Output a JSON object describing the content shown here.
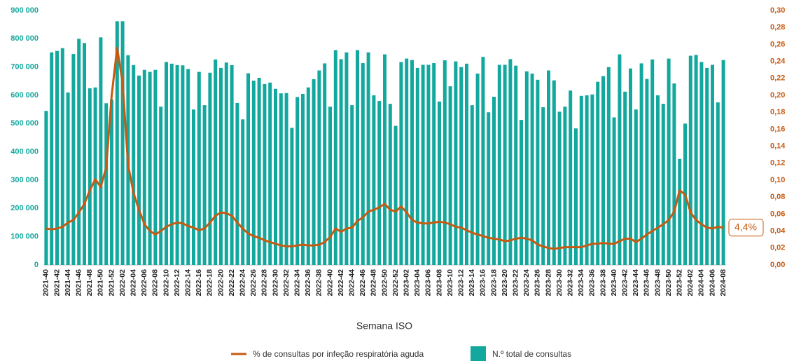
{
  "chart_data": {
    "type": "bar",
    "x_label": "Semana ISO",
    "annotation": "4,4%",
    "categories": [
      "2021-40",
      null,
      "2021-42",
      null,
      "2021-44",
      null,
      "2021-46",
      null,
      "2021-48",
      null,
      "2021-50",
      null,
      "2021-52",
      null,
      "2022-02",
      null,
      "2022-04",
      null,
      "2022-06",
      null,
      "2022-08",
      null,
      "2022-10",
      null,
      "2022-12",
      null,
      "2022-14",
      null,
      "2022-16",
      null,
      "2022-18",
      null,
      "2022-20",
      null,
      "2022-22",
      null,
      "2022-24",
      null,
      "2022-26",
      null,
      "2022-28",
      null,
      "2022-30",
      null,
      "2022-32",
      null,
      "2022-34",
      null,
      "2022-36",
      null,
      "2022-38",
      null,
      "2022-40",
      null,
      "2022-42",
      null,
      "2022-44",
      null,
      "2022-46",
      null,
      "2022-48",
      null,
      "2022-50",
      null,
      "2022-52",
      null,
      "2023-02",
      null,
      "2023-04",
      null,
      "2023-06",
      null,
      "2023-08",
      null,
      "2023-10",
      null,
      "2023-12",
      null,
      "2023-14",
      null,
      "2023-16",
      null,
      "2023-18",
      null,
      "2023-20",
      null,
      "2023-22",
      null,
      "2023-24",
      null,
      "2023-26",
      null,
      "2023-28",
      null,
      "2023-30",
      null,
      "2023-32",
      null,
      "2023-34",
      null,
      "2023-36",
      null,
      "2023-38",
      null,
      "2023-40",
      null,
      "2023-42",
      null,
      "2023-44",
      null,
      "2023-46",
      null,
      "2023-48",
      null,
      "2023-50",
      null,
      "2023-52",
      null,
      "2024-02",
      null,
      "2024-04",
      null,
      "2024-06",
      null,
      "2024-08"
    ],
    "series": [
      {
        "name": "% de consultas por infeção respiratória aguda",
        "type": "line",
        "axis": "y2",
        "color": "#c55a11",
        "values": [
          0.043,
          0.042,
          0.043,
          0.045,
          0.05,
          0.053,
          0.062,
          0.072,
          0.088,
          0.101,
          0.092,
          0.115,
          0.2,
          0.256,
          0.215,
          0.118,
          0.085,
          0.065,
          0.048,
          0.04,
          0.036,
          0.04,
          0.045,
          0.048,
          0.05,
          0.049,
          0.046,
          0.044,
          0.041,
          0.043,
          0.05,
          0.058,
          0.062,
          0.061,
          0.058,
          0.05,
          0.043,
          0.037,
          0.034,
          0.032,
          0.029,
          0.027,
          0.025,
          0.023,
          0.022,
          0.022,
          0.023,
          0.024,
          0.023,
          0.023,
          0.024,
          0.027,
          0.033,
          0.043,
          0.039,
          0.043,
          0.044,
          0.052,
          0.056,
          0.063,
          0.065,
          0.068,
          0.072,
          0.065,
          0.063,
          0.069,
          0.062,
          0.053,
          0.05,
          0.049,
          0.049,
          0.05,
          0.051,
          0.05,
          0.048,
          0.045,
          0.044,
          0.041,
          0.038,
          0.036,
          0.034,
          0.032,
          0.031,
          0.03,
          0.028,
          0.029,
          0.031,
          0.032,
          0.031,
          0.029,
          0.024,
          0.022,
          0.02,
          0.019,
          0.02,
          0.021,
          0.021,
          0.021,
          0.021,
          0.023,
          0.025,
          0.025,
          0.026,
          0.025,
          0.025,
          0.028,
          0.031,
          0.031,
          0.027,
          0.031,
          0.036,
          0.04,
          0.044,
          0.048,
          0.053,
          0.063,
          0.088,
          0.083,
          0.062,
          0.053,
          0.048,
          0.044,
          0.043,
          0.045,
          0.044
        ]
      },
      {
        "name": "N.º total de consultas",
        "type": "bar",
        "color": "#13a89e",
        "values": [
          545000,
          752000,
          757000,
          767000,
          610000,
          746000,
          800000,
          785000,
          625000,
          628000,
          805000,
          572000,
          585000,
          862000,
          862000,
          742000,
          707000,
          670000,
          690000,
          683000,
          690000,
          560000,
          718000,
          712000,
          707000,
          706000,
          693000,
          550000,
          683000,
          565000,
          680000,
          727000,
          697000,
          716000,
          707000,
          573000,
          515000,
          678000,
          652000,
          662000,
          640000,
          645000,
          623000,
          607000,
          608000,
          485000,
          594000,
          605000,
          628000,
          657000,
          688000,
          713000,
          560000,
          760000,
          728000,
          752000,
          565000,
          760000,
          714000,
          752000,
          600000,
          580000,
          745000,
          570000,
          492000,
          718000,
          730000,
          725000,
          697000,
          708000,
          708000,
          714000,
          578000,
          724000,
          632000,
          720000,
          700000,
          712000,
          565000,
          677000,
          736000,
          540000,
          595000,
          708000,
          708000,
          728000,
          705000,
          513000,
          685000,
          677000,
          655000,
          558000,
          688000,
          653000,
          542000,
          560000,
          617000,
          483000,
          598000,
          600000,
          603000,
          648000,
          668000,
          700000,
          522000,
          745000,
          613000,
          695000,
          550000,
          713000,
          658000,
          727000,
          600000,
          570000,
          730000,
          642000,
          375000,
          500000,
          740000,
          743000,
          718000,
          697000,
          708000,
          575000,
          725000
        ]
      }
    ],
    "ylim": [
      0,
      900000
    ],
    "yticks": [
      0,
      {
        "value": 100000,
        "label": "100 000"
      },
      {
        "value": 200000,
        "label": "200 000"
      },
      {
        "value": 300000,
        "label": "300 000"
      },
      {
        "value": 400000,
        "label": "400 000"
      },
      {
        "value": 500000,
        "label": "500 000"
      },
      {
        "value": 600000,
        "label": "600 000"
      },
      {
        "value": 700000,
        "label": "700 000"
      },
      {
        "value": 800000,
        "label": "800 000"
      },
      {
        "value": 900000,
        "label": "900 000"
      }
    ],
    "y2lim": [
      0,
      0.3
    ],
    "y2ticks": [
      {
        "value": 0,
        "label": "0,00"
      },
      {
        "value": 0.02,
        "label": "0,02"
      },
      {
        "value": 0.04,
        "label": "0,04"
      },
      {
        "value": 0.06,
        "label": "0,06"
      },
      {
        "value": 0.08,
        "label": "0,08"
      },
      {
        "value": 0.1,
        "label": "0,10"
      },
      {
        "value": 0.12,
        "label": "0,12"
      },
      {
        "value": 0.14,
        "label": "0,14"
      },
      {
        "value": 0.16,
        "label": "0,16"
      },
      {
        "value": 0.18,
        "label": "0,18"
      },
      {
        "value": 0.2,
        "label": "0,20"
      },
      {
        "value": 0.22,
        "label": "0,22"
      },
      {
        "value": 0.24,
        "label": "0,24"
      },
      {
        "value": 0.26,
        "label": "0,26"
      },
      {
        "value": 0.28,
        "label": "0,28"
      },
      {
        "value": 0.3,
        "label": "0,30"
      }
    ],
    "grid": false
  }
}
